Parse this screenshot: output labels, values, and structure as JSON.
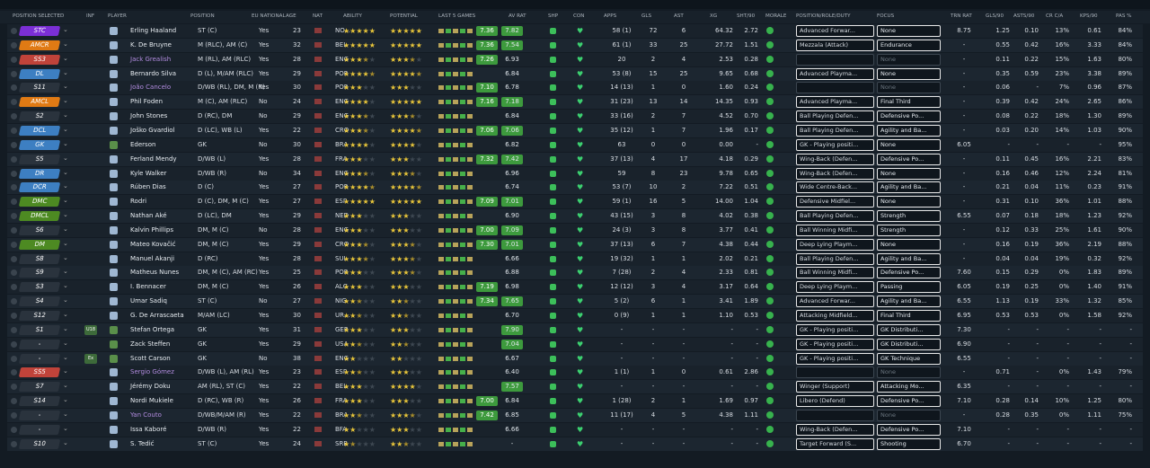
{
  "table": {
    "header": [
      "POSITION SELECTED",
      "INF",
      "PLAYER",
      "POSITION",
      "EU NATIONAL",
      "AGE",
      "NAT",
      "ABILITY",
      "POTENTIAL",
      "LAST 5 GAMES",
      "AV RAT",
      "SHP",
      "CON",
      "APPS",
      "GLS",
      "AST",
      "XG",
      "SHT/90",
      "MORALE",
      "POSITION/ROLE/DUTY",
      "FOCUS",
      "TRN RAT",
      "GLS/90",
      "ASTS/90",
      "CR C/A",
      "KPS/90",
      "PAS %"
    ],
    "rows": [
      [
        "STC",
        null,
        "Erling Haaland",
        "ST (C)",
        "Yes",
        "23",
        "NO...",
        5,
        5,
        "7.36",
        "7.82",
        "58 (1)",
        "72",
        "6",
        "64.32",
        "2.72",
        "Advanced Forwar...",
        "None",
        "8.75",
        "1.25",
        "0.10",
        "13%",
        "0.61",
        "84%"
      ],
      [
        "AMCR",
        null,
        "K. De Bruyne",
        "M (RLC), AM (C)",
        "Yes",
        "32",
        "BEL",
        5,
        5,
        "7.36",
        "7.54",
        "61 (1)",
        "33",
        "25",
        "27.72",
        "1.51",
        "Mezzala (Attack)",
        "Endurance",
        "-",
        "0.55",
        "0.42",
        "16%",
        "3.33",
        "84%"
      ],
      [
        "SS3",
        null,
        "Jack Grealish",
        "M (RL), AM (RLC)",
        "Yes",
        "28",
        "ENG",
        3.5,
        3.5,
        "7.26",
        "6.93",
        "20",
        "2",
        "4",
        "2.53",
        "0.28",
        null,
        "None",
        "-",
        "0.11",
        "0.22",
        "15%",
        "1.63",
        "80%"
      ],
      [
        "DL",
        null,
        "Bernardo Silva",
        "D (L), M/AM (RLC)",
        "Yes",
        "29",
        "POR",
        4.5,
        4.5,
        null,
        "6.84",
        "53 (8)",
        "15",
        "25",
        "9.65",
        "0.68",
        "Advanced Playma...",
        "None",
        "-",
        "0.35",
        "0.59",
        "23%",
        "3.38",
        "89%"
      ],
      [
        "S11",
        null,
        "João Cancelo",
        "D/WB (RL), DM, M (R)",
        "Yes",
        "30",
        "POR",
        3,
        3,
        "7.10",
        "6.78",
        "14 (13)",
        "1",
        "0",
        "1.60",
        "0.24",
        null,
        "None",
        "-",
        "0.06",
        "-",
        "7%",
        "0.96",
        "87%"
      ],
      [
        "AMCL",
        null,
        "Phil Foden",
        "M (C), AM (RLC)",
        "No",
        "24",
        "ENG",
        4,
        5,
        "7.16",
        "7.18",
        "31 (23)",
        "13",
        "14",
        "14.35",
        "0.93",
        "Advanced Playma...",
        "Final Third",
        "-",
        "0.39",
        "0.42",
        "24%",
        "2.65",
        "86%"
      ],
      [
        "S2",
        null,
        "John Stones",
        "D (RC), DM",
        "No",
        "29",
        "ENG",
        3.5,
        3.5,
        null,
        "6.84",
        "33 (16)",
        "2",
        "7",
        "4.52",
        "0.70",
        "Ball Playing Defen...",
        "Defensive Po...",
        "-",
        "0.08",
        "0.22",
        "18%",
        "1.30",
        "89%"
      ],
      [
        "DCL",
        null,
        "Joško Gvardiol",
        "D (LC), WB (L)",
        "Yes",
        "22",
        "CRO",
        3.5,
        4.5,
        "7.06",
        "7.06",
        "35 (12)",
        "1",
        "7",
        "1.96",
        "0.17",
        "Ball Playing Defen...",
        "Agility and Ba...",
        "-",
        "0.03",
        "0.20",
        "14%",
        "1.03",
        "90%"
      ],
      [
        "GK",
        null,
        "Ederson",
        "GK",
        "No",
        "30",
        "BRA",
        4,
        4,
        null,
        "6.82",
        "63",
        "0",
        "0",
        "0.00",
        "-",
        "GK - Playing positi...",
        "None",
        "6.05",
        "-",
        "-",
        "-",
        "-",
        "95%"
      ],
      [
        "S5",
        null,
        "Ferland Mendy",
        "D/WB (L)",
        "Yes",
        "28",
        "FRA",
        3,
        3,
        "7.32",
        "7.42",
        "37 (13)",
        "4",
        "17",
        "4.18",
        "0.29",
        "Wing-Back (Defen...",
        "Defensive Po...",
        "-",
        "0.11",
        "0.45",
        "16%",
        "2.21",
        "83%"
      ],
      [
        "DR",
        null,
        "Kyle Walker",
        "D/WB (R)",
        "No",
        "34",
        "ENG",
        3.5,
        3.5,
        null,
        "6.96",
        "59",
        "8",
        "23",
        "9.78",
        "0.65",
        "Wing-Back (Defen...",
        "None",
        "-",
        "0.16",
        "0.46",
        "12%",
        "2.24",
        "81%"
      ],
      [
        "DCR",
        null,
        "Rúben Dias",
        "D (C)",
        "Yes",
        "27",
        "POR",
        4.5,
        4.5,
        null,
        "6.74",
        "53 (7)",
        "10",
        "2",
        "7.22",
        "0.51",
        "Wide Centre-Back...",
        "Agility and Ba...",
        "-",
        "0.21",
        "0.04",
        "11%",
        "0.23",
        "91%"
      ],
      [
        "DMC",
        null,
        "Rodri",
        "D (C), DM, M (C)",
        "Yes",
        "27",
        "ESP",
        5,
        5,
        "7.09",
        "7.01",
        "59 (1)",
        "16",
        "5",
        "14.00",
        "1.04",
        "Defensive Midfiel...",
        "None",
        "-",
        "0.31",
        "0.10",
        "36%",
        "1.01",
        "88%"
      ],
      [
        "DMCL",
        null,
        "Nathan Aké",
        "D (LC), DM",
        "Yes",
        "29",
        "NED",
        3,
        3,
        null,
        "6.90",
        "43 (15)",
        "3",
        "8",
        "4.02",
        "0.38",
        "Ball Playing Defen...",
        "Strength",
        "6.55",
        "0.07",
        "0.18",
        "18%",
        "1.23",
        "92%"
      ],
      [
        "S6",
        null,
        "Kalvin Phillips",
        "DM, M (C)",
        "No",
        "28",
        "ENG",
        3,
        3,
        "7.00",
        "7.09",
        "24 (3)",
        "3",
        "8",
        "3.77",
        "0.41",
        "Ball Winning Midfi...",
        "Strength",
        "-",
        "0.12",
        "0.33",
        "25%",
        "1.61",
        "90%"
      ],
      [
        "DM",
        null,
        "Mateo Kovačić",
        "DM, M (C)",
        "Yes",
        "29",
        "CRO",
        3.5,
        3.5,
        "7.30",
        "7.01",
        "37 (13)",
        "6",
        "7",
        "4.38",
        "0.44",
        "Deep Lying Playm...",
        "None",
        "-",
        "0.16",
        "0.19",
        "36%",
        "2.19",
        "88%"
      ],
      [
        "S8",
        null,
        "Manuel Akanji",
        "D (RC)",
        "Yes",
        "28",
        "SUI",
        3.5,
        3.5,
        null,
        "6.66",
        "19 (32)",
        "1",
        "1",
        "2.02",
        "0.21",
        "Ball Playing Defen...",
        "Agility and Ba...",
        "-",
        "0.04",
        "0.04",
        "19%",
        "0.32",
        "92%"
      ],
      [
        "S9",
        null,
        "Matheus Nunes",
        "DM, M (C), AM (RC)",
        "Yes",
        "25",
        "POR",
        3,
        3.5,
        null,
        "6.88",
        "7 (28)",
        "2",
        "4",
        "2.33",
        "0.81",
        "Ball Winning Midfi...",
        "Defensive Po...",
        "7.60",
        "0.15",
        "0.29",
        "0%",
        "1.83",
        "89%"
      ],
      [
        "S3",
        null,
        "I. Bennacer",
        "DM, M (C)",
        "Yes",
        "26",
        "ALG",
        3,
        3,
        "7.19",
        "6.98",
        "12 (12)",
        "3",
        "4",
        "3.17",
        "0.64",
        "Deep Lying Playm...",
        "Passing",
        "6.05",
        "0.19",
        "0.25",
        "0%",
        "1.40",
        "91%"
      ],
      [
        "S4",
        null,
        "Umar Sadiq",
        "ST (C)",
        "No",
        "27",
        "NIG",
        2.5,
        2.5,
        "7.34",
        "7.65",
        "5 (2)",
        "6",
        "1",
        "3.41",
        "1.89",
        "Advanced Forwar...",
        "Agility and Ba...",
        "6.55",
        "1.13",
        "0.19",
        "33%",
        "1.32",
        "85%"
      ],
      [
        "S12",
        null,
        "G. De Arrascaeta",
        "M/AM (LC)",
        "Yes",
        "30",
        "UR...",
        2.5,
        2.5,
        null,
        "6.70",
        "0 (9)",
        "1",
        "1",
        "1.10",
        "0.53",
        "Attacking Midfield...",
        "Final Third",
        "6.95",
        "0.53",
        "0.53",
        "0%",
        "1.58",
        "92%"
      ],
      [
        "S1",
        "U18",
        "Stefan Ortega",
        "GK",
        "Yes",
        "31",
        "GER",
        3,
        3,
        null,
        "7.90",
        "-",
        "-",
        "-",
        "-",
        "-",
        "GK - Playing positi...",
        "GK Distributi...",
        "7.30",
        "-",
        "-",
        "-",
        "-",
        "-"
      ],
      [
        "-",
        null,
        "Zack Steffen",
        "GK",
        "Yes",
        "29",
        "USA",
        2.5,
        2.5,
        null,
        "7.04",
        "-",
        "-",
        "-",
        "-",
        "-",
        "GK - Playing positi...",
        "GK Distributi...",
        "6.90",
        "-",
        "-",
        "-",
        "-",
        "-"
      ],
      [
        "-",
        "Ex",
        "Scott Carson",
        "GK",
        "No",
        "38",
        "ENG",
        2,
        2,
        null,
        "6.67",
        "-",
        "-",
        "-",
        "-",
        "-",
        "GK - Playing positi...",
        "GK Technique",
        "6.55",
        "-",
        "-",
        "-",
        "-",
        "-"
      ],
      [
        "SS5",
        null,
        "Sergio Gómez",
        "D/WB (L), AM (RL)",
        "Yes",
        "23",
        "ESP",
        2.5,
        3,
        null,
        "6.40",
        "1 (1)",
        "1",
        "0",
        "0.61",
        "2.86",
        null,
        "None",
        "-",
        "0.71",
        "-",
        "0%",
        "1.43",
        "79%"
      ],
      [
        "S7",
        null,
        "Jérémy Doku",
        "AM (RL), ST (C)",
        "Yes",
        "22",
        "BEL",
        3,
        4,
        null,
        "7.57",
        "-",
        "-",
        "-",
        "-",
        "-",
        "Winger (Support)",
        "Attacking Mo...",
        "6.35",
        "-",
        "-",
        "-",
        "-",
        "-"
      ],
      [
        "S14",
        null,
        "Nordi Mukiele",
        "D (RC), WB (R)",
        "Yes",
        "26",
        "FRA",
        3,
        3,
        "7.00",
        "6.84",
        "1 (28)",
        "2",
        "1",
        "1.69",
        "0.97",
        "Libero (Defend)",
        "Defensive Po...",
        "7.10",
        "0.28",
        "0.14",
        "10%",
        "1.25",
        "80%"
      ],
      [
        "-",
        null,
        "Yan Couto",
        "D/WB/M/AM (R)",
        "Yes",
        "22",
        "BRA",
        2.5,
        3.5,
        "7.42",
        "6.85",
        "11 (17)",
        "4",
        "5",
        "4.38",
        "1.11",
        null,
        "None",
        "-",
        "0.28",
        "0.35",
        "0%",
        "1.11",
        "75%"
      ],
      [
        "-",
        null,
        "Issa Kaboré",
        "D/WB (R)",
        "Yes",
        "22",
        "BFA",
        2,
        3,
        null,
        "6.66",
        "-",
        "-",
        "-",
        "-",
        "-",
        "Wing-Back (Defen...",
        "Defensive Po...",
        "7.10",
        "-",
        "-",
        "-",
        "-",
        "-"
      ],
      [
        "S10",
        null,
        "S. Tedić",
        "ST (C)",
        "Yes",
        "24",
        "SRB",
        1.5,
        2.5,
        null,
        "-",
        "-",
        "-",
        "-",
        "-",
        "-",
        "Target Forward (S...",
        "Shooting",
        "6.70",
        "-",
        "-",
        "-",
        "-",
        "-"
      ]
    ]
  }
}
